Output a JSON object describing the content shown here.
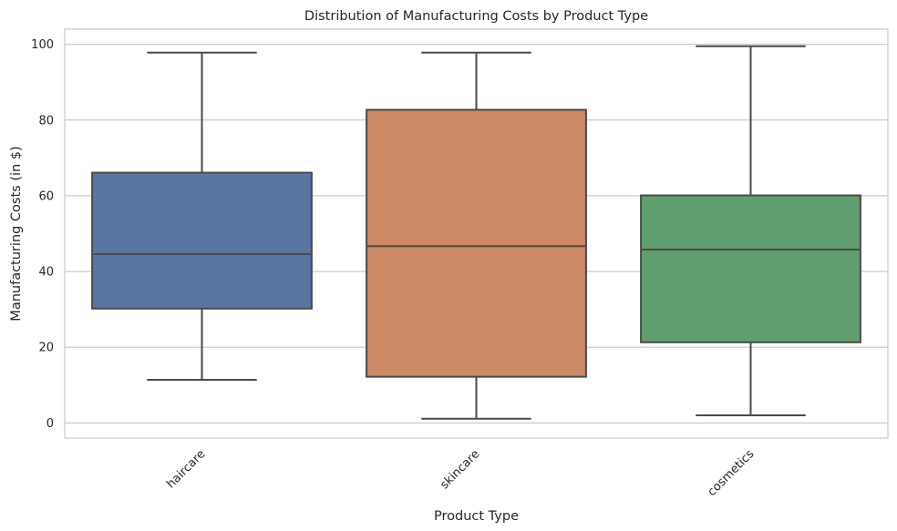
{
  "chart_data": {
    "type": "box",
    "title": "Distribution of Manufacturing Costs by Product Type",
    "xlabel": "Product Type",
    "ylabel": "Manufacturing Costs (in $)",
    "categories": [
      "haircare",
      "skincare",
      "cosmetics"
    ],
    "boxes": [
      {
        "category": "haircare",
        "whisker_low": 11.4,
        "q1": 30.2,
        "median": 44.6,
        "q3": 66.1,
        "whisker_high": 97.8,
        "color": "#5875a4"
      },
      {
        "category": "skincare",
        "whisker_low": 1.1,
        "q1": 12.2,
        "median": 46.7,
        "q3": 82.7,
        "whisker_high": 97.8,
        "color": "#cc8963"
      },
      {
        "category": "cosmetics",
        "whisker_low": 2.0,
        "q1": 21.3,
        "median": 45.8,
        "q3": 60.1,
        "whisker_high": 99.5,
        "color": "#5f9e6e"
      }
    ],
    "ylim": [
      -4,
      104
    ],
    "yticks": [
      0,
      20,
      40,
      60,
      80,
      100
    ],
    "grid": true,
    "line_color": "#4a4a4a",
    "grid_color": "#cccccc"
  }
}
